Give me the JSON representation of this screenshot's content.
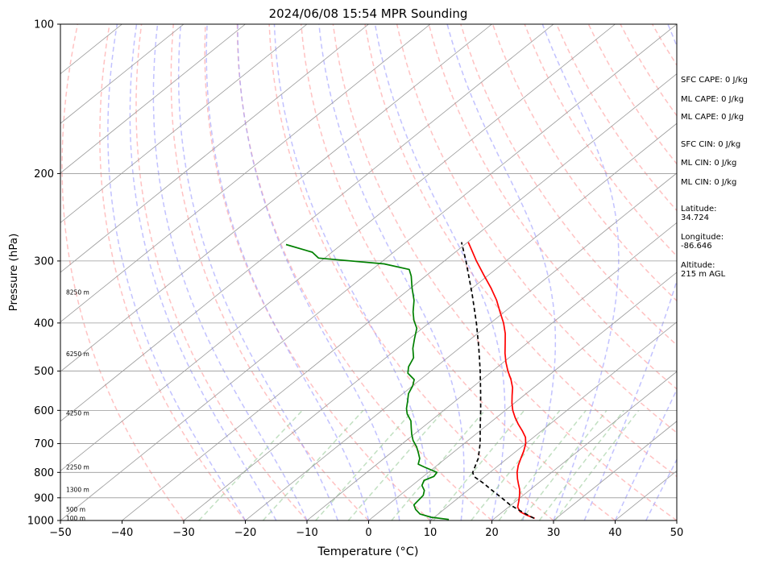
{
  "chart_data": {
    "type": "line",
    "title": "2024/06/08 15:54 MPR Sounding",
    "xlabel": "Temperature (°C)",
    "ylabel": "Pressure (hPa)",
    "xlim": [
      -50,
      50
    ],
    "ylim": [
      1000,
      100
    ],
    "y_scale": "log",
    "skew_t": true,
    "grid": true,
    "x_ticks": [
      -50,
      -40,
      -30,
      -20,
      -10,
      0,
      10,
      20,
      30,
      40,
      50
    ],
    "x_tick_labels": [
      "−50",
      "−40",
      "−30",
      "−20",
      "−10",
      "0",
      "10",
      "20",
      "30",
      "40",
      "50"
    ],
    "y_ticks": [
      1000,
      900,
      800,
      700,
      600,
      500,
      400,
      300,
      200,
      100
    ],
    "y_tick_labels": [
      "1000",
      "900",
      "800",
      "700",
      "600",
      "500",
      "400",
      "300",
      "200",
      "100"
    ],
    "series": [
      {
        "role": "temperature",
        "color": "#ff0000",
        "style": "solid",
        "points": [
          {
            "p": 990,
            "t": 26.5
          },
          {
            "p": 975,
            "t": 24.5
          },
          {
            "p": 960,
            "t": 22.8
          },
          {
            "p": 940,
            "t": 21.5
          },
          {
            "p": 910,
            "t": 20.3
          },
          {
            "p": 885,
            "t": 19.2
          },
          {
            "p": 865,
            "t": 18.2
          },
          {
            "p": 845,
            "t": 17.0
          },
          {
            "p": 825,
            "t": 15.8
          },
          {
            "p": 800,
            "t": 14.4
          },
          {
            "p": 775,
            "t": 13.2
          },
          {
            "p": 750,
            "t": 12.2
          },
          {
            "p": 725,
            "t": 11.2
          },
          {
            "p": 700,
            "t": 10.0
          },
          {
            "p": 680,
            "t": 8.7
          },
          {
            "p": 660,
            "t": 6.9
          },
          {
            "p": 640,
            "t": 4.9
          },
          {
            "p": 620,
            "t": 3.0
          },
          {
            "p": 600,
            "t": 1.2
          },
          {
            "p": 580,
            "t": -0.4
          },
          {
            "p": 560,
            "t": -1.9
          },
          {
            "p": 540,
            "t": -3.4
          },
          {
            "p": 520,
            "t": -5.3
          },
          {
            "p": 500,
            "t": -7.5
          },
          {
            "p": 480,
            "t": -9.6
          },
          {
            "p": 460,
            "t": -11.6
          },
          {
            "p": 440,
            "t": -13.5
          },
          {
            "p": 420,
            "t": -15.5
          },
          {
            "p": 400,
            "t": -17.9
          },
          {
            "p": 380,
            "t": -20.7
          },
          {
            "p": 360,
            "t": -23.6
          },
          {
            "p": 340,
            "t": -27.0
          },
          {
            "p": 320,
            "t": -30.8
          },
          {
            "p": 300,
            "t": -34.8
          },
          {
            "p": 285,
            "t": -37.8
          },
          {
            "p": 275,
            "t": -39.9
          }
        ]
      },
      {
        "role": "dewpoint",
        "color": "#008000",
        "style": "solid",
        "points": [
          {
            "p": 995,
            "t": 12.8
          },
          {
            "p": 985,
            "t": 9.5
          },
          {
            "p": 970,
            "t": 7.0
          },
          {
            "p": 950,
            "t": 5.4
          },
          {
            "p": 930,
            "t": 4.2
          },
          {
            "p": 910,
            "t": 4.0
          },
          {
            "p": 890,
            "t": 3.8
          },
          {
            "p": 870,
            "t": 3.0
          },
          {
            "p": 850,
            "t": 1.6
          },
          {
            "p": 830,
            "t": 0.9
          },
          {
            "p": 815,
            "t": 1.7
          },
          {
            "p": 800,
            "t": 1.4
          },
          {
            "p": 790,
            "t": -0.2
          },
          {
            "p": 780,
            "t": -1.8
          },
          {
            "p": 770,
            "t": -3.3
          },
          {
            "p": 750,
            "t": -4.2
          },
          {
            "p": 730,
            "t": -5.6
          },
          {
            "p": 710,
            "t": -7.1
          },
          {
            "p": 690,
            "t": -8.9
          },
          {
            "p": 670,
            "t": -10.4
          },
          {
            "p": 650,
            "t": -11.8
          },
          {
            "p": 630,
            "t": -13.2
          },
          {
            "p": 610,
            "t": -15.2
          },
          {
            "p": 595,
            "t": -16.4
          },
          {
            "p": 575,
            "t": -17.7
          },
          {
            "p": 555,
            "t": -19.1
          },
          {
            "p": 535,
            "t": -20.0
          },
          {
            "p": 520,
            "t": -21.0
          },
          {
            "p": 505,
            "t": -23.3
          },
          {
            "p": 490,
            "t": -24.5
          },
          {
            "p": 470,
            "t": -25.5
          },
          {
            "p": 450,
            "t": -27.5
          },
          {
            "p": 430,
            "t": -29.2
          },
          {
            "p": 410,
            "t": -30.9
          },
          {
            "p": 395,
            "t": -33.0
          },
          {
            "p": 380,
            "t": -34.8
          },
          {
            "p": 360,
            "t": -37.0
          },
          {
            "p": 340,
            "t": -39.8
          },
          {
            "p": 322,
            "t": -42.3
          },
          {
            "p": 312,
            "t": -44.0
          },
          {
            "p": 304,
            "t": -49.2
          },
          {
            "p": 296,
            "t": -61.0
          },
          {
            "p": 288,
            "t": -63.2
          },
          {
            "p": 278,
            "t": -69.0
          }
        ]
      },
      {
        "role": "parcel",
        "color": "#000000",
        "style": "dashed",
        "points": [
          {
            "p": 990,
            "t": 26.4
          },
          {
            "p": 970,
            "t": 24.2
          },
          {
            "p": 950,
            "t": 22.0
          },
          {
            "p": 930,
            "t": 19.8
          },
          {
            "p": 900,
            "t": 17.0
          },
          {
            "p": 870,
            "t": 14.0
          },
          {
            "p": 840,
            "t": 11.0
          },
          {
            "p": 815,
            "t": 8.2
          },
          {
            "p": 800,
            "t": 7.2
          },
          {
            "p": 750,
            "t": 5.3
          },
          {
            "p": 700,
            "t": 2.6
          },
          {
            "p": 650,
            "t": -0.6
          },
          {
            "p": 600,
            "t": -4.0
          },
          {
            "p": 550,
            "t": -7.8
          },
          {
            "p": 500,
            "t": -12.0
          },
          {
            "p": 450,
            "t": -16.8
          },
          {
            "p": 400,
            "t": -22.3
          },
          {
            "p": 350,
            "t": -28.8
          },
          {
            "p": 300,
            "t": -36.5
          },
          {
            "p": 275,
            "t": -41.0
          }
        ]
      }
    ],
    "height_labels": [
      {
        "p": 990,
        "text": "100 m"
      },
      {
        "p": 950,
        "text": "500 m"
      },
      {
        "p": 868,
        "text": "1300 m"
      },
      {
        "p": 782,
        "text": "2250 m"
      },
      {
        "p": 608,
        "text": "4250 m"
      },
      {
        "p": 462,
        "text": "6250 m"
      },
      {
        "p": 347,
        "text": "8250 m"
      }
    ],
    "colors": {
      "isotherm": "#999999",
      "grid": "#999999",
      "dry_adiabat": "#ff9999",
      "moist_adiabat": "#9999ff",
      "mixing_ratio": "#99cc99"
    }
  },
  "side_panel": [
    {
      "text": "SFC CAPE: 0 J/kg"
    },
    {
      "text": "ML CAPE: 0 J/kg"
    },
    {
      "text": "ML CAPE: 0 J/kg"
    },
    {
      "text": "SFC CIN: 0 J/kg"
    },
    {
      "text": "ML CIN: 0 J/kg"
    },
    {
      "text": "ML CIN: 0 J/kg"
    },
    {
      "text": "Latitude:"
    },
    {
      "text": "34.724"
    },
    {
      "text": "Longitude:"
    },
    {
      "text": "-86.646"
    },
    {
      "text": "Altitude:"
    },
    {
      "text": "215 m AGL"
    }
  ]
}
